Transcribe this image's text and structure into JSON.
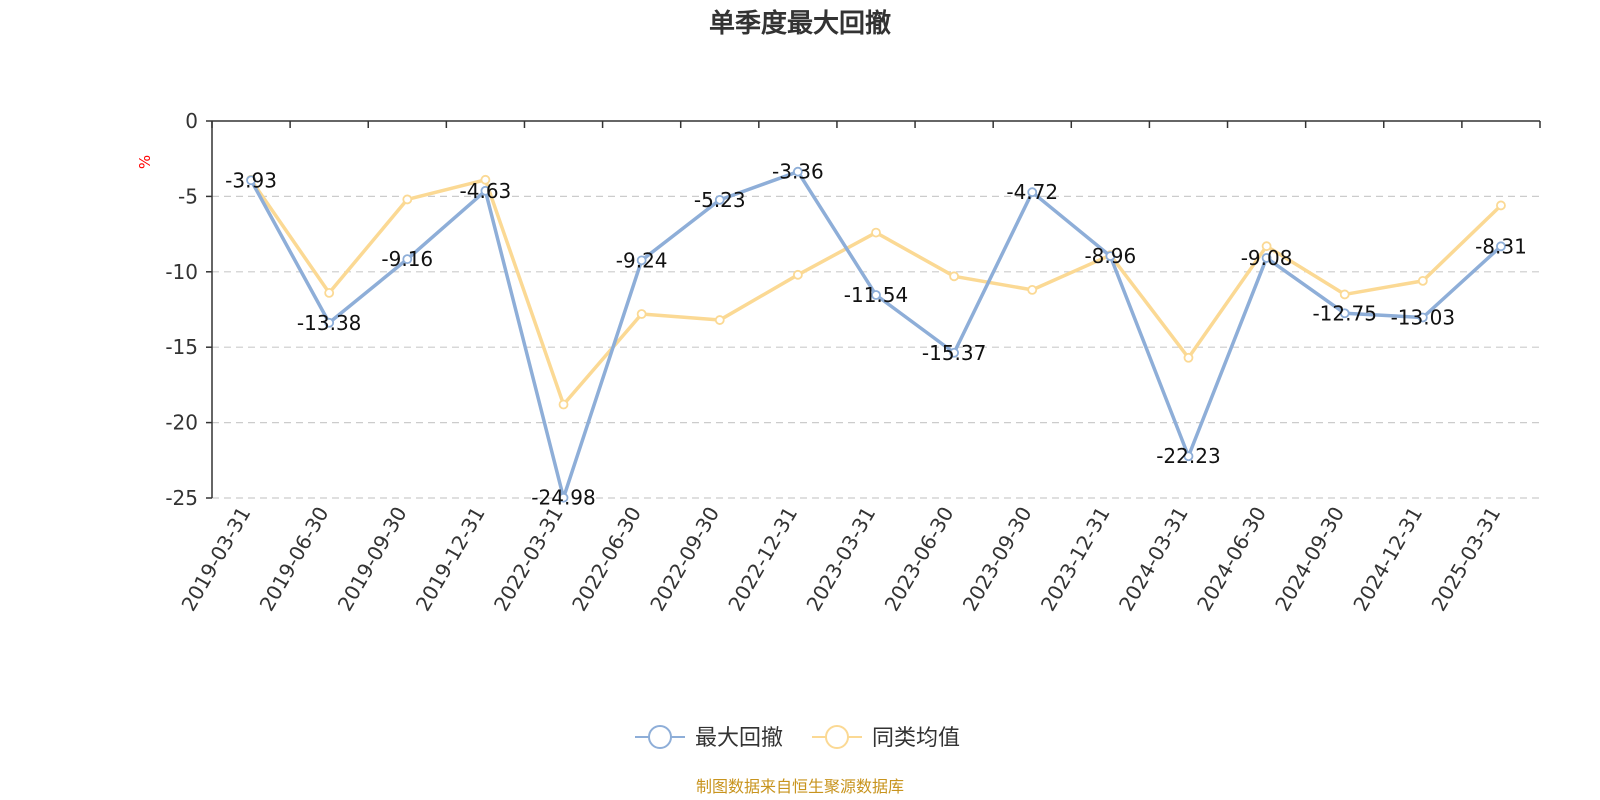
{
  "chart_data": {
    "type": "line",
    "title": "单季度最大回撤",
    "ylabel": "%",
    "ylim": [
      -25,
      0
    ],
    "yticks": [
      0,
      -5,
      -10,
      -15,
      -20,
      -25
    ],
    "grid": true,
    "legend_position": "bottom",
    "categories": [
      "2019-03-31",
      "2019-06-30",
      "2019-09-30",
      "2019-12-31",
      "2022-03-31",
      "2022-06-30",
      "2022-09-30",
      "2022-12-31",
      "2023-03-31",
      "2023-06-30",
      "2023-09-30",
      "2023-12-31",
      "2024-03-31",
      "2024-06-30",
      "2024-09-30",
      "2024-12-31",
      "2025-03-31"
    ],
    "series": [
      {
        "name": "最大回撤",
        "color": "#8eaed8",
        "show_labels": true,
        "values": [
          -3.93,
          -13.38,
          -9.16,
          -4.63,
          -24.98,
          -9.24,
          -5.23,
          -3.36,
          -11.54,
          -15.37,
          -4.72,
          -8.96,
          -22.23,
          -9.08,
          -12.75,
          -13.03,
          -8.31
        ]
      },
      {
        "name": "同类均值",
        "color": "#fbd994",
        "show_labels": false,
        "values": [
          -3.9,
          -11.4,
          -5.2,
          -3.9,
          -18.8,
          -12.8,
          -13.2,
          -10.2,
          -7.4,
          -10.3,
          -11.2,
          -8.9,
          -15.7,
          -8.3,
          -11.5,
          -10.6,
          -5.6
        ]
      }
    ]
  },
  "footer": {
    "source": "制图数据来自恒生聚源数据库"
  }
}
